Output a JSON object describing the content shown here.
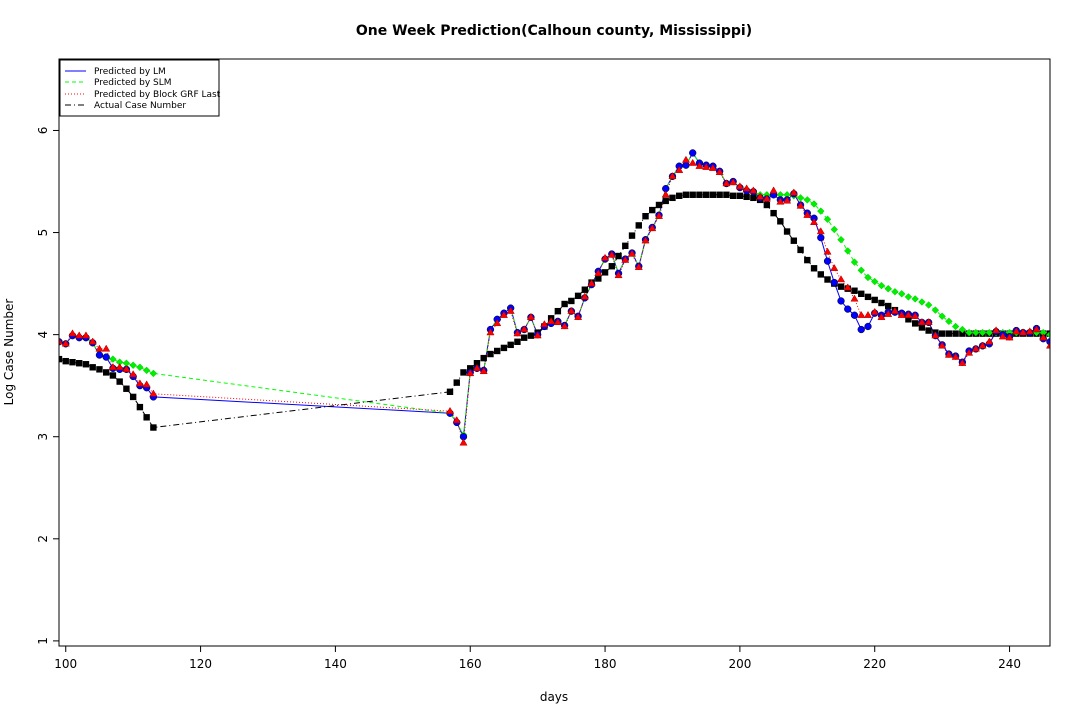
{
  "chart_data": {
    "type": "line",
    "title": "One Week Prediction(Calhoun county, Mississippi)",
    "xlabel": "days",
    "ylabel": "Log Case Number",
    "xlim": [
      99,
      246
    ],
    "ylim": [
      0.95,
      6.7
    ],
    "xticks": [
      100,
      120,
      140,
      160,
      180,
      200,
      220,
      240
    ],
    "yticks": [
      1,
      2,
      3,
      4,
      5,
      6
    ],
    "legend_position": "top-left",
    "legend": [
      "Predicted by LM",
      "Predicted by SLM",
      "Predicted by Block GRF Last",
      "Actual Case Number"
    ],
    "x": [
      99,
      100,
      101,
      102,
      103,
      104,
      105,
      106,
      107,
      108,
      109,
      110,
      111,
      112,
      113,
      157,
      158,
      159,
      160,
      161,
      162,
      163,
      164,
      165,
      166,
      167,
      168,
      169,
      170,
      171,
      172,
      173,
      174,
      175,
      176,
      177,
      178,
      179,
      180,
      181,
      182,
      183,
      184,
      185,
      186,
      187,
      188,
      189,
      190,
      191,
      192,
      193,
      194,
      195,
      196,
      197,
      198,
      199,
      200,
      201,
      202,
      203,
      204,
      205,
      206,
      207,
      208,
      209,
      210,
      211,
      212,
      213,
      214,
      215,
      216,
      217,
      218,
      219,
      220,
      221,
      222,
      223,
      224,
      225,
      226,
      227,
      228,
      229,
      230,
      231,
      232,
      233,
      234,
      235,
      236,
      237,
      238,
      239,
      240,
      241,
      242,
      243,
      244,
      245,
      246
    ],
    "series": [
      {
        "name": "Predicted by LM",
        "color": "#0000ff",
        "line": "solid",
        "marker": "circle",
        "values": [
          3.93,
          3.91,
          3.99,
          3.97,
          3.97,
          3.92,
          3.8,
          3.78,
          3.67,
          3.66,
          3.66,
          3.59,
          3.5,
          3.48,
          3.39,
          3.23,
          3.14,
          3.0,
          3.63,
          3.67,
          3.65,
          4.05,
          4.15,
          4.21,
          4.26,
          4.02,
          4.05,
          4.17,
          4.0,
          4.08,
          4.11,
          4.13,
          4.09,
          4.23,
          4.18,
          4.36,
          4.49,
          4.62,
          4.74,
          4.79,
          4.6,
          4.74,
          4.8,
          4.67,
          4.93,
          5.05,
          5.17,
          5.43,
          5.55,
          5.65,
          5.66,
          5.78,
          5.68,
          5.66,
          5.65,
          5.6,
          5.48,
          5.5,
          5.44,
          5.41,
          5.4,
          5.34,
          5.33,
          5.37,
          5.32,
          5.32,
          5.38,
          5.27,
          5.19,
          5.14,
          4.95,
          4.72,
          4.51,
          4.33,
          4.25,
          4.19,
          4.05,
          4.08,
          4.21,
          4.19,
          4.22,
          4.22,
          4.21,
          4.2,
          4.19,
          4.12,
          4.12,
          3.99,
          3.9,
          3.81,
          3.79,
          3.73,
          3.84,
          3.86,
          3.89,
          3.91,
          4.03,
          4.0,
          3.98,
          4.04,
          4.02,
          4.02,
          4.06,
          3.96,
          3.93
        ]
      },
      {
        "name": "Predicted by SLM",
        "color": "#00ff00",
        "line": "dashed",
        "marker": "diamond",
        "values": [
          3.93,
          3.91,
          3.99,
          3.97,
          3.97,
          3.92,
          3.8,
          3.78,
          3.76,
          3.73,
          3.72,
          3.7,
          3.68,
          3.65,
          3.62,
          3.23,
          3.14,
          3.02,
          3.63,
          3.67,
          3.65,
          4.05,
          4.15,
          4.21,
          4.26,
          4.02,
          4.05,
          4.17,
          4.0,
          4.08,
          4.11,
          4.13,
          4.09,
          4.23,
          4.18,
          4.36,
          4.49,
          4.62,
          4.74,
          4.79,
          4.6,
          4.74,
          4.8,
          4.67,
          4.93,
          5.05,
          5.17,
          5.43,
          5.55,
          5.65,
          5.66,
          5.78,
          5.68,
          5.66,
          5.65,
          5.6,
          5.48,
          5.5,
          5.44,
          5.41,
          5.4,
          5.37,
          5.37,
          5.37,
          5.37,
          5.37,
          5.36,
          5.34,
          5.32,
          5.28,
          5.21,
          5.13,
          5.03,
          4.93,
          4.82,
          4.71,
          4.63,
          4.56,
          4.52,
          4.48,
          4.45,
          4.42,
          4.4,
          4.37,
          4.35,
          4.32,
          4.29,
          4.24,
          4.18,
          4.13,
          4.08,
          4.05,
          4.02,
          4.02,
          4.02,
          4.02,
          4.02,
          4.02,
          4.02,
          4.02,
          4.02,
          4.02,
          4.02,
          4.02,
          4.0
        ]
      },
      {
        "name": "Predicted by Block GRF Last",
        "color": "#ff0000",
        "line": "dotted",
        "marker": "triangle",
        "values": [
          3.93,
          3.91,
          4.01,
          3.99,
          3.99,
          3.93,
          3.86,
          3.86,
          3.68,
          3.68,
          3.66,
          3.61,
          3.52,
          3.51,
          3.42,
          3.25,
          3.16,
          2.94,
          3.62,
          3.67,
          3.64,
          4.02,
          4.11,
          4.19,
          4.23,
          4.01,
          4.05,
          4.17,
          3.99,
          4.1,
          4.13,
          4.12,
          4.08,
          4.23,
          4.17,
          4.37,
          4.5,
          4.6,
          4.75,
          4.78,
          4.58,
          4.73,
          4.79,
          4.66,
          4.92,
          5.04,
          5.16,
          5.37,
          5.55,
          5.61,
          5.71,
          5.68,
          5.65,
          5.64,
          5.63,
          5.59,
          5.48,
          5.49,
          5.45,
          5.43,
          5.41,
          5.35,
          5.33,
          5.41,
          5.3,
          5.31,
          5.39,
          5.26,
          5.17,
          5.1,
          5.01,
          4.81,
          4.65,
          4.54,
          4.46,
          4.35,
          4.19,
          4.19,
          4.22,
          4.17,
          4.2,
          4.23,
          4.19,
          4.19,
          4.18,
          4.12,
          4.12,
          3.99,
          3.89,
          3.8,
          3.78,
          3.72,
          3.82,
          3.86,
          3.89,
          3.93,
          4.04,
          3.98,
          3.97,
          4.03,
          4.02,
          4.03,
          4.05,
          3.97,
          3.89
        ]
      },
      {
        "name": "Actual Case Number",
        "color": "#000000",
        "line": "dashdot",
        "marker": "square",
        "values": [
          3.76,
          3.74,
          3.73,
          3.72,
          3.71,
          3.68,
          3.66,
          3.63,
          3.6,
          3.54,
          3.47,
          3.39,
          3.29,
          3.19,
          3.09,
          3.44,
          3.53,
          3.63,
          3.67,
          3.72,
          3.77,
          3.81,
          3.84,
          3.87,
          3.9,
          3.93,
          3.97,
          3.99,
          4.02,
          4.08,
          4.16,
          4.23,
          4.3,
          4.33,
          4.38,
          4.44,
          4.51,
          4.55,
          4.61,
          4.67,
          4.77,
          4.87,
          4.97,
          5.07,
          5.16,
          5.22,
          5.27,
          5.31,
          5.34,
          5.36,
          5.37,
          5.37,
          5.37,
          5.37,
          5.37,
          5.37,
          5.37,
          5.36,
          5.36,
          5.35,
          5.34,
          5.32,
          5.27,
          5.19,
          5.11,
          5.01,
          4.92,
          4.83,
          4.73,
          4.65,
          4.59,
          4.54,
          4.5,
          4.47,
          4.45,
          4.43,
          4.4,
          4.37,
          4.34,
          4.31,
          4.28,
          4.24,
          4.2,
          4.15,
          4.11,
          4.07,
          4.04,
          4.02,
          4.01,
          4.01,
          4.01,
          4.01,
          4.01,
          4.01,
          4.01,
          4.01,
          4.01,
          4.01,
          4.01,
          4.01,
          4.01,
          4.01,
          4.01,
          4.01,
          4.01
        ]
      }
    ]
  }
}
